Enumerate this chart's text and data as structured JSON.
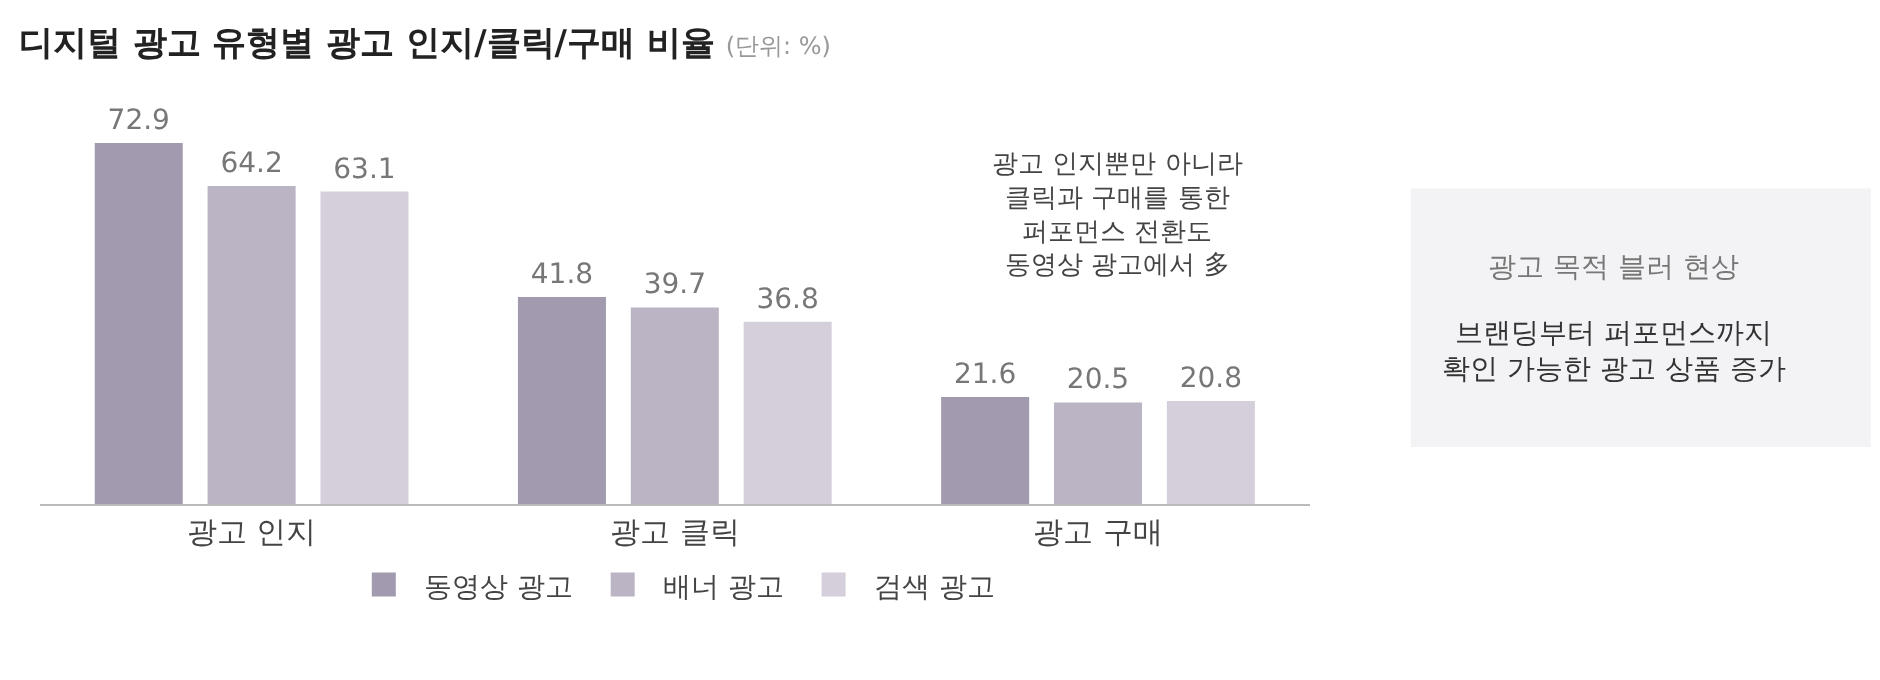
{
  "chart_data": {
    "type": "bar",
    "title": "디지털 광고 유형별 광고 인지/클릭/구매 비율",
    "subtitle": "(단위: %)",
    "categories": [
      "광고 인지",
      "광고 클릭",
      "광고 구매"
    ],
    "series": [
      {
        "name": "동영상 광고",
        "color": "#a29aae",
        "values": [
          72.9,
          41.8,
          21.6
        ]
      },
      {
        "name": "배너 광고",
        "color": "#bbb4c5",
        "values": [
          64.2,
          39.7,
          20.5
        ]
      },
      {
        "name": "검색 광고",
        "color": "#d4cfdb",
        "values": [
          63.1,
          36.8,
          20.8
        ]
      }
    ],
    "tick_labels": "x",
    "data_labels": true,
    "legend": "bottom",
    "grid": false,
    "annotations": [
      "광고 인지뿐만 아니라\n클릭과 구매를 통한\n퍼포먼스 전환도\n동영상 광고에서 多",
      "광고 목적 블러 현상",
      "브랜딩부터 퍼포먼스까지\n확인 가능한 광고 상품 증가"
    ]
  }
}
